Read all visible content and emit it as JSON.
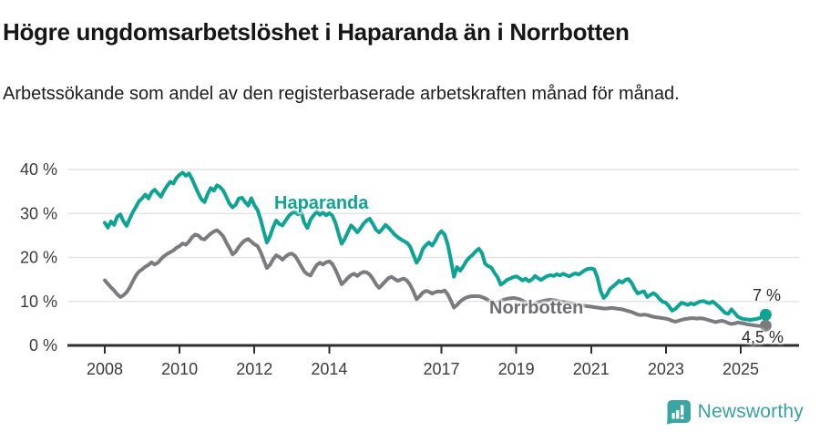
{
  "header": {
    "title": "Högre ungdomsarbetslöshet i Haparanda än i Norrbotten",
    "subtitle": "Arbetssökande som andel av den registerbaserade arbetskraften månad för månad."
  },
  "chart_data": {
    "type": "line",
    "title": "Högre ungdomsarbetslöshet i Haparanda än i Norrbotten",
    "xlabel": "",
    "ylabel": "",
    "grid": true,
    "ylim": [
      0,
      40
    ],
    "x_start_year": 2008,
    "x_step_years": 0.08333,
    "yticks": [
      {
        "value": 0,
        "label": "0 %"
      },
      {
        "value": 10,
        "label": "10 %"
      },
      {
        "value": 20,
        "label": "20 %"
      },
      {
        "value": 30,
        "label": "30 %"
      },
      {
        "value": 40,
        "label": "40 %"
      }
    ],
    "xticks": [
      {
        "year": 2008,
        "label": "2008"
      },
      {
        "year": 2010,
        "label": "2010"
      },
      {
        "year": 2012,
        "label": "2012"
      },
      {
        "year": 2014,
        "label": "2014"
      },
      {
        "year": 2017,
        "label": "2017"
      },
      {
        "year": 2019,
        "label": "2019"
      },
      {
        "year": 2021,
        "label": "2021"
      },
      {
        "year": 2023,
        "label": "2023"
      },
      {
        "year": 2025,
        "label": "2025"
      }
    ],
    "series": [
      {
        "name": "Haparanda",
        "color": "#0ea392",
        "end_label": "7 %",
        "end_value": 7,
        "values": [
          27.9,
          26.8,
          28.2,
          27.4,
          29.3,
          29.8,
          28.2,
          27.2,
          28.8,
          30.3,
          31.5,
          32.8,
          33.5,
          34.3,
          33.4,
          34.8,
          35.4,
          34.6,
          33.8,
          35.2,
          36.3,
          37.2,
          36.8,
          38.1,
          38.8,
          39.3,
          38.6,
          39.1,
          37.8,
          36.2,
          34.6,
          33.2,
          32.6,
          34.4,
          35.8,
          35.2,
          36.4,
          36.0,
          35.2,
          33.8,
          32.2,
          31.4,
          32.0,
          33.4,
          33.6,
          32.6,
          31.8,
          33.5,
          31.9,
          30.8,
          28.6,
          25.9,
          23.4,
          24.8,
          26.9,
          28.4,
          27.6,
          27.3,
          28.4,
          29.4,
          30.1,
          30.4,
          29.8,
          30.3,
          27.9,
          26.7,
          28.6,
          29.6,
          30.4,
          29.7,
          30.2,
          29.6,
          30.1,
          29.5,
          27.9,
          25.4,
          23.1,
          24.3,
          25.8,
          27.3,
          26.6,
          25.7,
          26.6,
          27.7,
          28.4,
          28.8,
          27.6,
          26.3,
          25.7,
          26.4,
          27.4,
          26.8,
          26.0,
          25.2,
          24.6,
          24.1,
          23.7,
          23.3,
          22.4,
          20.6,
          18.8,
          19.9,
          21.9,
          22.8,
          23.4,
          22.7,
          23.8,
          25.2,
          26.0,
          25.2,
          23.0,
          19.5,
          15.6,
          17.8,
          17.0,
          18.0,
          19.2,
          20.0,
          20.6,
          21.4,
          22.0,
          21.0,
          18.6,
          18.0,
          17.7,
          16.5,
          15.5,
          13.8,
          14.3,
          14.9,
          15.2,
          15.5,
          15.7,
          15.3,
          14.8,
          15.2,
          14.6,
          15.0,
          15.8,
          15.3,
          14.9,
          15.4,
          15.8,
          16.0,
          15.8,
          16.2,
          15.9,
          16.3,
          16.0,
          15.7,
          16.1,
          16.4,
          16.1,
          16.6,
          17.1,
          17.4,
          17.5,
          17.3,
          15.5,
          12.5,
          10.8,
          11.5,
          12.8,
          13.4,
          14.0,
          14.7,
          14.3,
          14.9,
          15.1,
          14.2,
          12.8,
          11.8,
          12.1,
          12.3,
          11.0,
          11.5,
          11.9,
          11.4,
          10.5,
          9.9,
          9.7,
          8.9,
          7.9,
          8.3,
          9.0,
          9.7,
          9.5,
          9.2,
          9.6,
          9.3,
          9.7,
          10.0,
          10.1,
          9.8,
          9.6,
          10.0,
          9.4,
          8.8,
          8.1,
          7.4,
          7.2,
          8.2,
          7.4,
          6.6,
          6.2,
          6.0,
          5.9,
          5.8,
          5.9,
          6.0,
          6.2,
          6.6,
          7.0
        ]
      },
      {
        "name": "Norrbotten",
        "color": "#7b7b7e",
        "end_label": "4,5 %",
        "end_value": 4.5,
        "values": [
          14.8,
          14.0,
          13.2,
          12.5,
          11.6,
          11.0,
          11.4,
          12.1,
          13.2,
          14.6,
          15.9,
          16.8,
          17.3,
          17.9,
          18.3,
          18.9,
          18.4,
          18.8,
          19.6,
          20.3,
          20.8,
          21.2,
          21.6,
          22.2,
          22.6,
          23.2,
          22.9,
          23.6,
          24.6,
          25.2,
          25.0,
          24.3,
          24.1,
          24.8,
          25.4,
          25.9,
          26.2,
          25.6,
          24.8,
          23.4,
          22.1,
          20.7,
          21.3,
          22.4,
          23.3,
          23.9,
          24.2,
          23.6,
          23.0,
          22.6,
          21.2,
          19.4,
          17.6,
          18.3,
          19.6,
          20.5,
          20.1,
          19.5,
          20.2,
          20.7,
          20.9,
          20.4,
          19.3,
          18.0,
          16.8,
          16.2,
          15.9,
          17.2,
          18.3,
          18.8,
          18.4,
          18.9,
          19.1,
          18.5,
          17.2,
          15.6,
          13.9,
          14.6,
          15.4,
          16.0,
          16.3,
          15.8,
          16.4,
          16.7,
          16.6,
          16.1,
          15.1,
          13.9,
          13.1,
          13.8,
          14.6,
          15.3,
          15.6,
          15.1,
          14.7,
          15.0,
          15.2,
          14.7,
          13.7,
          12.3,
          10.5,
          11.2,
          12.0,
          12.4,
          12.2,
          11.8,
          12.1,
          12.3,
          12.2,
          12.5,
          11.6,
          10.2,
          8.6,
          9.2,
          10.0,
          10.5,
          10.9,
          11.1,
          11.2,
          11.2,
          11.2,
          11.0,
          10.7,
          10.3,
          9.8,
          9.6,
          9.8,
          10.1,
          10.4,
          10.6,
          10.7,
          10.8,
          10.7,
          10.5,
          10.2,
          9.8,
          9.4,
          9.3,
          9.5,
          9.8,
          10.0,
          10.2,
          10.3,
          10.4,
          10.3,
          10.2,
          10.0,
          9.9,
          9.8,
          9.6,
          9.5,
          9.4,
          9.2,
          9.1,
          9.0,
          8.9,
          8.8,
          8.7,
          8.6,
          8.5,
          8.4,
          8.4,
          8.5,
          8.5,
          8.4,
          8.3,
          8.2,
          8.0,
          7.8,
          7.6,
          7.3,
          7.0,
          6.9,
          7.0,
          6.9,
          6.7,
          6.5,
          6.4,
          6.3,
          6.2,
          6.1,
          5.9,
          5.6,
          5.4,
          5.6,
          5.8,
          6.0,
          6.1,
          6.2,
          6.2,
          6.1,
          6.2,
          6.1,
          5.9,
          5.7,
          5.5,
          5.3,
          5.5,
          5.6,
          5.4,
          5.1,
          4.9,
          5.0,
          5.2,
          5.1,
          5.0,
          4.8,
          4.7,
          4.6,
          4.5,
          4.4,
          4.4,
          4.5
        ]
      }
    ],
    "colors": {
      "haparanda": "#0ea392",
      "norrbotten": "#7b7b7e",
      "gridline": "#e4e4e4",
      "axis": "#2e2e2e",
      "tick_text": "#3b3b3b",
      "brand_teal": "#38a2a0"
    },
    "legend_position": "inline-labels"
  },
  "footer": {
    "brand": "Newsworthy"
  }
}
